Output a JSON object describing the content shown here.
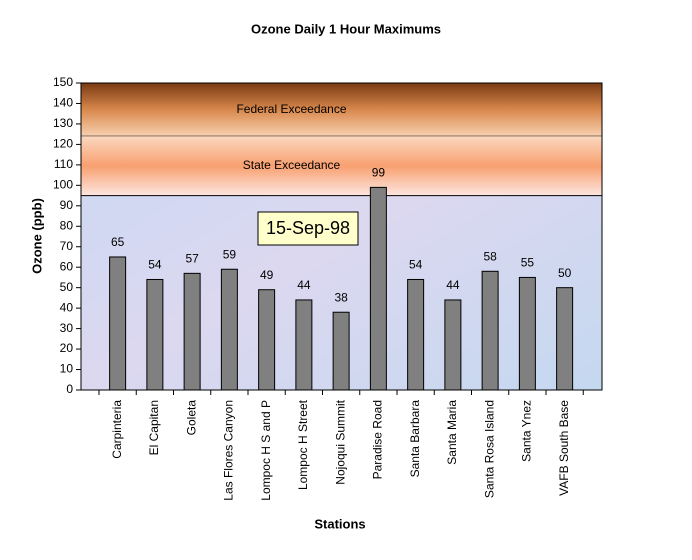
{
  "chart_data": {
    "type": "bar",
    "title": "Ozone Daily 1 Hour Maximums",
    "x_label": "Stations",
    "y_label": "Ozone (ppb)",
    "annotation": "15-Sep-98",
    "bands": [
      {
        "label": "Federal Exceedance",
        "from": 124,
        "to": 150,
        "color": "#b8602a"
      },
      {
        "label": "State Exceedance",
        "from": 95,
        "to": 124,
        "color": "#f9a878"
      }
    ],
    "categories": [
      "Carpinteria",
      "El Capitan",
      "Goleta",
      "Las Flores Canyon",
      "Lompoc H S and P",
      "Lompoc H Street",
      "Nojoqui Summit",
      "Paradise Road",
      "Santa Barbara",
      "Santa Maria",
      "Santa Rosa Island",
      "Santa Ynez",
      "VAFB South Base"
    ],
    "values": [
      65,
      54,
      57,
      59,
      49,
      44,
      38,
      99,
      54,
      44,
      58,
      55,
      50
    ],
    "color": "#808080",
    "ylim": [
      0,
      150
    ],
    "yticks": [
      0,
      10,
      20,
      30,
      40,
      50,
      60,
      70,
      80,
      90,
      100,
      110,
      120,
      130,
      140,
      150
    ]
  }
}
